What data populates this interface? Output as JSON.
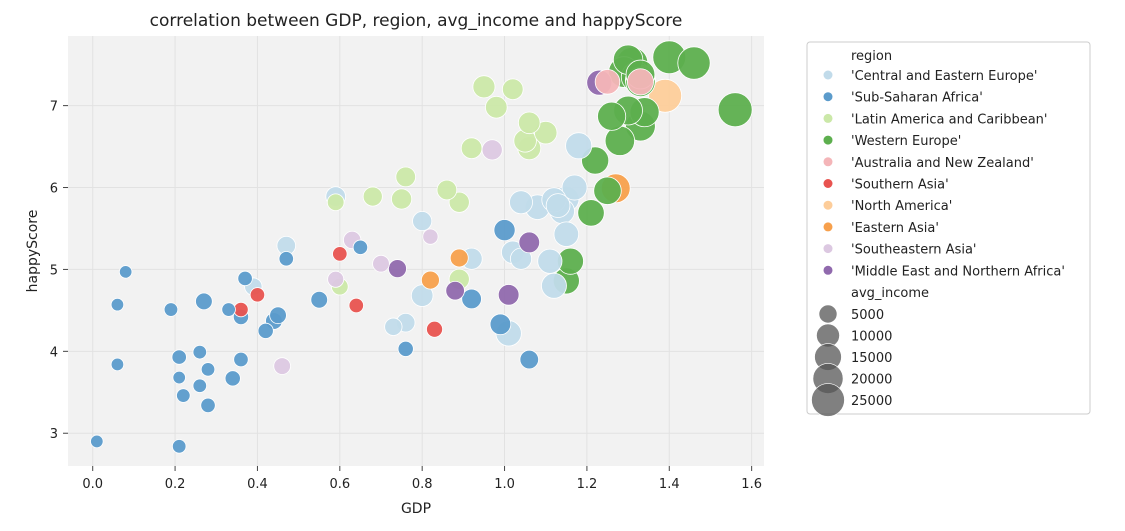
{
  "chart_data": {
    "type": "scatter",
    "title": "correlation between GDP, region, avg_income and happyScore",
    "xlabel": "GDP",
    "ylabel": "happyScore",
    "xlim": [
      -0.06,
      1.63
    ],
    "ylim": [
      2.6,
      7.85
    ],
    "xticks": [
      {
        "v": 0.0,
        "label": "0.0"
      },
      {
        "v": 0.2,
        "label": "0.2"
      },
      {
        "v": 0.4,
        "label": "0.4"
      },
      {
        "v": 0.6,
        "label": "0.6"
      },
      {
        "v": 0.8,
        "label": "0.8"
      },
      {
        "v": 1.0,
        "label": "1.0"
      },
      {
        "v": 1.2,
        "label": "1.2"
      },
      {
        "v": 1.4,
        "label": "1.4"
      },
      {
        "v": 1.6,
        "label": "1.6"
      }
    ],
    "yticks": [
      {
        "v": 3,
        "label": "3"
      },
      {
        "v": 4,
        "label": "4"
      },
      {
        "v": 5,
        "label": "5"
      },
      {
        "v": 6,
        "label": "6"
      },
      {
        "v": 7,
        "label": "7"
      }
    ],
    "grid": true,
    "legend_position": "outside-right",
    "hue_title": "region",
    "size_title": "avg_income",
    "size_legend": [
      {
        "label": "5000",
        "value": 5000
      },
      {
        "label": "10000",
        "value": 10000
      },
      {
        "label": "15000",
        "value": 15000
      },
      {
        "label": "20000",
        "value": 20000
      },
      {
        "label": "25000",
        "value": 25000
      }
    ],
    "series": [
      {
        "name": "'Central and Eastern Europe'",
        "color": "#c1dbea",
        "points": [
          [
            0.59,
            5.89
          ],
          [
            0.47,
            5.29
          ],
          [
            0.39,
            4.79
          ],
          [
            0.76,
            4.35
          ],
          [
            0.73,
            4.3
          ],
          [
            0.8,
            4.68
          ],
          [
            0.8,
            5.59
          ],
          [
            0.92,
            5.13
          ],
          [
            1.04,
            5.82
          ],
          [
            1.08,
            5.76
          ],
          [
            1.12,
            5.85
          ],
          [
            1.13,
            5.78
          ],
          [
            1.15,
            5.86
          ],
          [
            1.17,
            6.0
          ],
          [
            1.18,
            6.51
          ],
          [
            1.14,
            5.71
          ],
          [
            1.15,
            5.43
          ],
          [
            1.11,
            5.1
          ],
          [
            1.12,
            4.8
          ],
          [
            1.02,
            5.21
          ],
          [
            1.04,
            5.13
          ],
          [
            1.01,
            4.22
          ]
        ],
        "sizes": [
          6500,
          5500,
          4500,
          5500,
          4500,
          8500,
          6000,
          8000,
          10000,
          12000,
          11500,
          11000,
          13000,
          12500,
          14000,
          12000,
          12000,
          11500,
          12500,
          9500,
          8000,
          13000
        ]
      },
      {
        "name": "'Sub-Saharan Africa'",
        "color": "#5b9bcb",
        "points": [
          [
            0.01,
            2.9
          ],
          [
            0.06,
            3.84
          ],
          [
            0.06,
            4.57
          ],
          [
            0.08,
            4.97
          ],
          [
            0.19,
            4.51
          ],
          [
            0.21,
            2.84
          ],
          [
            0.21,
            3.93
          ],
          [
            0.21,
            3.68
          ],
          [
            0.22,
            3.46
          ],
          [
            0.26,
            3.99
          ],
          [
            0.26,
            3.58
          ],
          [
            0.27,
            4.61
          ],
          [
            0.28,
            3.34
          ],
          [
            0.28,
            3.78
          ],
          [
            0.33,
            4.51
          ],
          [
            0.34,
            3.67
          ],
          [
            0.36,
            4.42
          ],
          [
            0.36,
            3.9
          ],
          [
            0.37,
            4.89
          ],
          [
            0.42,
            4.25
          ],
          [
            0.44,
            4.37
          ],
          [
            0.45,
            4.44
          ],
          [
            0.47,
            5.13
          ],
          [
            0.55,
            4.63
          ],
          [
            0.65,
            5.27
          ],
          [
            0.76,
            4.03
          ],
          [
            0.92,
            4.64
          ],
          [
            0.99,
            4.33
          ],
          [
            1.0,
            5.48
          ],
          [
            1.06,
            3.9
          ]
        ],
        "sizes": [
          1500,
          1500,
          1500,
          1500,
          2000,
          2000,
          2500,
          1500,
          2000,
          2000,
          2000,
          4000,
          2500,
          2000,
          2000,
          3000,
          3000,
          2500,
          2500,
          3000,
          4000,
          4000,
          2500,
          4000,
          2500,
          3000,
          6500,
          7500,
          8000,
          5500
        ]
      },
      {
        "name": "'Latin America and Caribbean'",
        "color": "#cbe8a8",
        "points": [
          [
            0.59,
            5.82
          ],
          [
            0.6,
            4.79
          ],
          [
            0.68,
            5.89
          ],
          [
            0.75,
            5.86
          ],
          [
            0.76,
            6.13
          ],
          [
            0.86,
            5.97
          ],
          [
            0.89,
            5.82
          ],
          [
            0.89,
            4.88
          ],
          [
            0.92,
            6.48
          ],
          [
            0.95,
            7.23
          ],
          [
            0.98,
            6.98
          ],
          [
            1.02,
            7.2
          ],
          [
            1.05,
            6.57
          ],
          [
            1.06,
            6.48
          ],
          [
            1.06,
            6.79
          ],
          [
            1.1,
            6.67
          ]
        ],
        "sizes": [
          4000,
          4000,
          6000,
          7000,
          6500,
          6500,
          7000,
          7000,
          7500,
          9000,
          8500,
          7500,
          9500,
          10000,
          8500,
          9500
        ]
      },
      {
        "name": "'Western Europe'",
        "color": "#5daf4e",
        "points": [
          [
            1.15,
            4.86
          ],
          [
            1.16,
            5.1
          ],
          [
            1.21,
            5.69
          ],
          [
            1.22,
            6.33
          ],
          [
            1.25,
            5.96
          ],
          [
            1.26,
            6.87
          ],
          [
            1.28,
            6.57
          ],
          [
            1.3,
            6.94
          ],
          [
            1.29,
            7.41
          ],
          [
            1.3,
            7.56
          ],
          [
            1.31,
            7.52
          ],
          [
            1.32,
            7.35
          ],
          [
            1.33,
            7.38
          ],
          [
            1.33,
            7.29
          ],
          [
            1.33,
            6.75
          ],
          [
            1.34,
            6.92
          ],
          [
            1.4,
            7.59
          ],
          [
            1.46,
            7.52
          ],
          [
            1.56,
            6.95
          ]
        ],
        "sizes": [
          14000,
          14000,
          14500,
          15500,
          16000,
          17000,
          19000,
          18000,
          21000,
          19000,
          22000,
          20000,
          18000,
          19000,
          19500,
          18500,
          25000,
          24000,
          27000
        ]
      },
      {
        "name": "'Australia and New Zealand'",
        "color": "#f4b5b8",
        "points": [
          [
            1.25,
            7.29
          ],
          [
            1.33,
            7.29
          ]
        ],
        "sizes": [
          12000,
          14000
        ]
      },
      {
        "name": "'Southern Asia'",
        "color": "#e8534f",
        "points": [
          [
            0.36,
            4.51
          ],
          [
            0.4,
            4.69
          ],
          [
            0.6,
            5.19
          ],
          [
            0.64,
            4.56
          ],
          [
            0.83,
            4.27
          ]
        ],
        "sizes": [
          2500,
          2500,
          2500,
          2500,
          3500
        ]
      },
      {
        "name": "'North America'",
        "color": "#fdcd9a",
        "points": [
          [
            1.33,
            7.31
          ],
          [
            1.39,
            7.12
          ]
        ],
        "sizes": [
          20000,
          25000
        ]
      },
      {
        "name": "'Eastern Asia'",
        "color": "#f7a04c",
        "points": [
          [
            0.82,
            4.87
          ],
          [
            0.89,
            5.14
          ],
          [
            1.27,
            5.99
          ]
        ],
        "sizes": [
          5000,
          5000,
          18000
        ]
      },
      {
        "name": "'Southeastern Asia'",
        "color": "#dcc8e1",
        "points": [
          [
            0.46,
            3.82
          ],
          [
            0.59,
            4.88
          ],
          [
            0.63,
            5.36
          ],
          [
            0.7,
            5.07
          ],
          [
            0.82,
            5.4
          ],
          [
            0.97,
            6.46
          ]
        ],
        "sizes": [
          4000,
          3500,
          4500,
          4000,
          3000,
          7000
        ]
      },
      {
        "name": "'Middle East and Northern Africa'",
        "color": "#9069ad",
        "points": [
          [
            0.74,
            5.01
          ],
          [
            0.88,
            4.74
          ],
          [
            1.01,
            4.69
          ],
          [
            1.06,
            5.33
          ],
          [
            1.23,
            7.28
          ]
        ],
        "sizes": [
          5000,
          5500,
          7500,
          7500,
          12500
        ]
      }
    ]
  }
}
